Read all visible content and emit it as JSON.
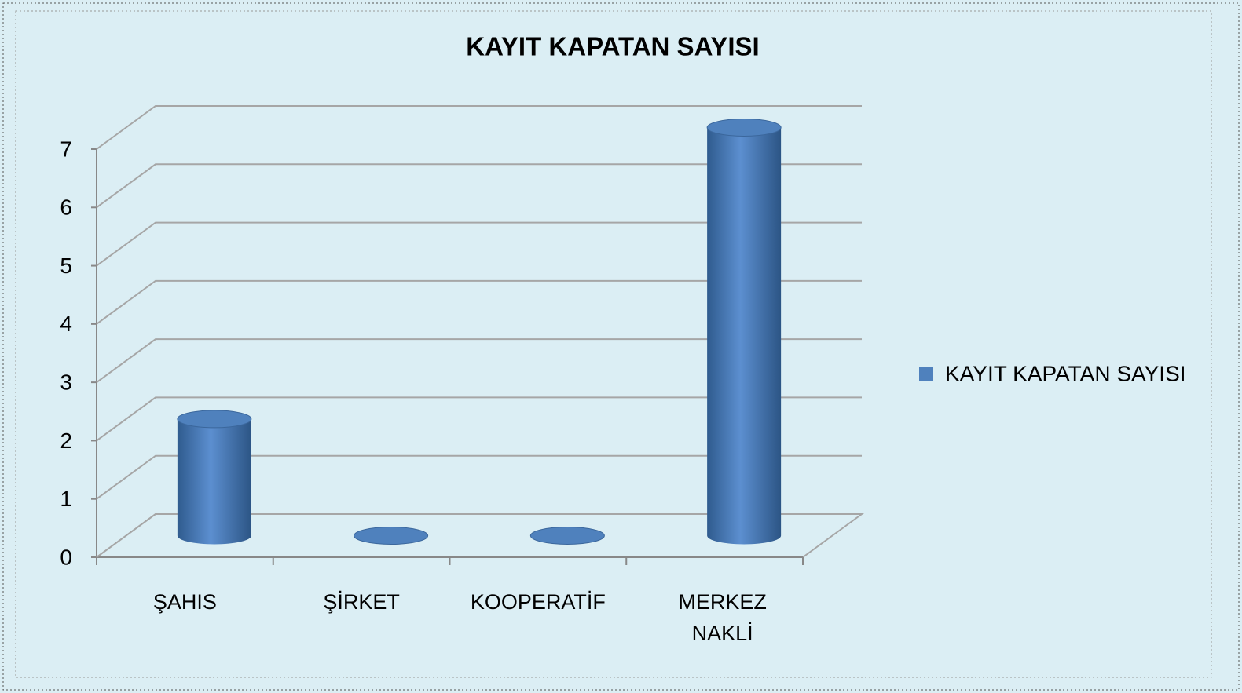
{
  "chart_data": {
    "type": "bar3d",
    "title": "KAYIT KAPATAN SAYISI",
    "categories": [
      "ŞAHIS",
      "ŞİRKET",
      "KOOPERATİF",
      "MERKEZ NAKLİ"
    ],
    "series": [
      {
        "name": "KAYIT KAPATAN SAYISI",
        "color": "#4f81bd",
        "values": [
          2,
          0,
          0,
          7
        ]
      }
    ],
    "ylim": [
      0,
      7
    ],
    "yticks": [
      0,
      1,
      2,
      3,
      4,
      5,
      6,
      7
    ],
    "grid": true,
    "legend": "right"
  }
}
